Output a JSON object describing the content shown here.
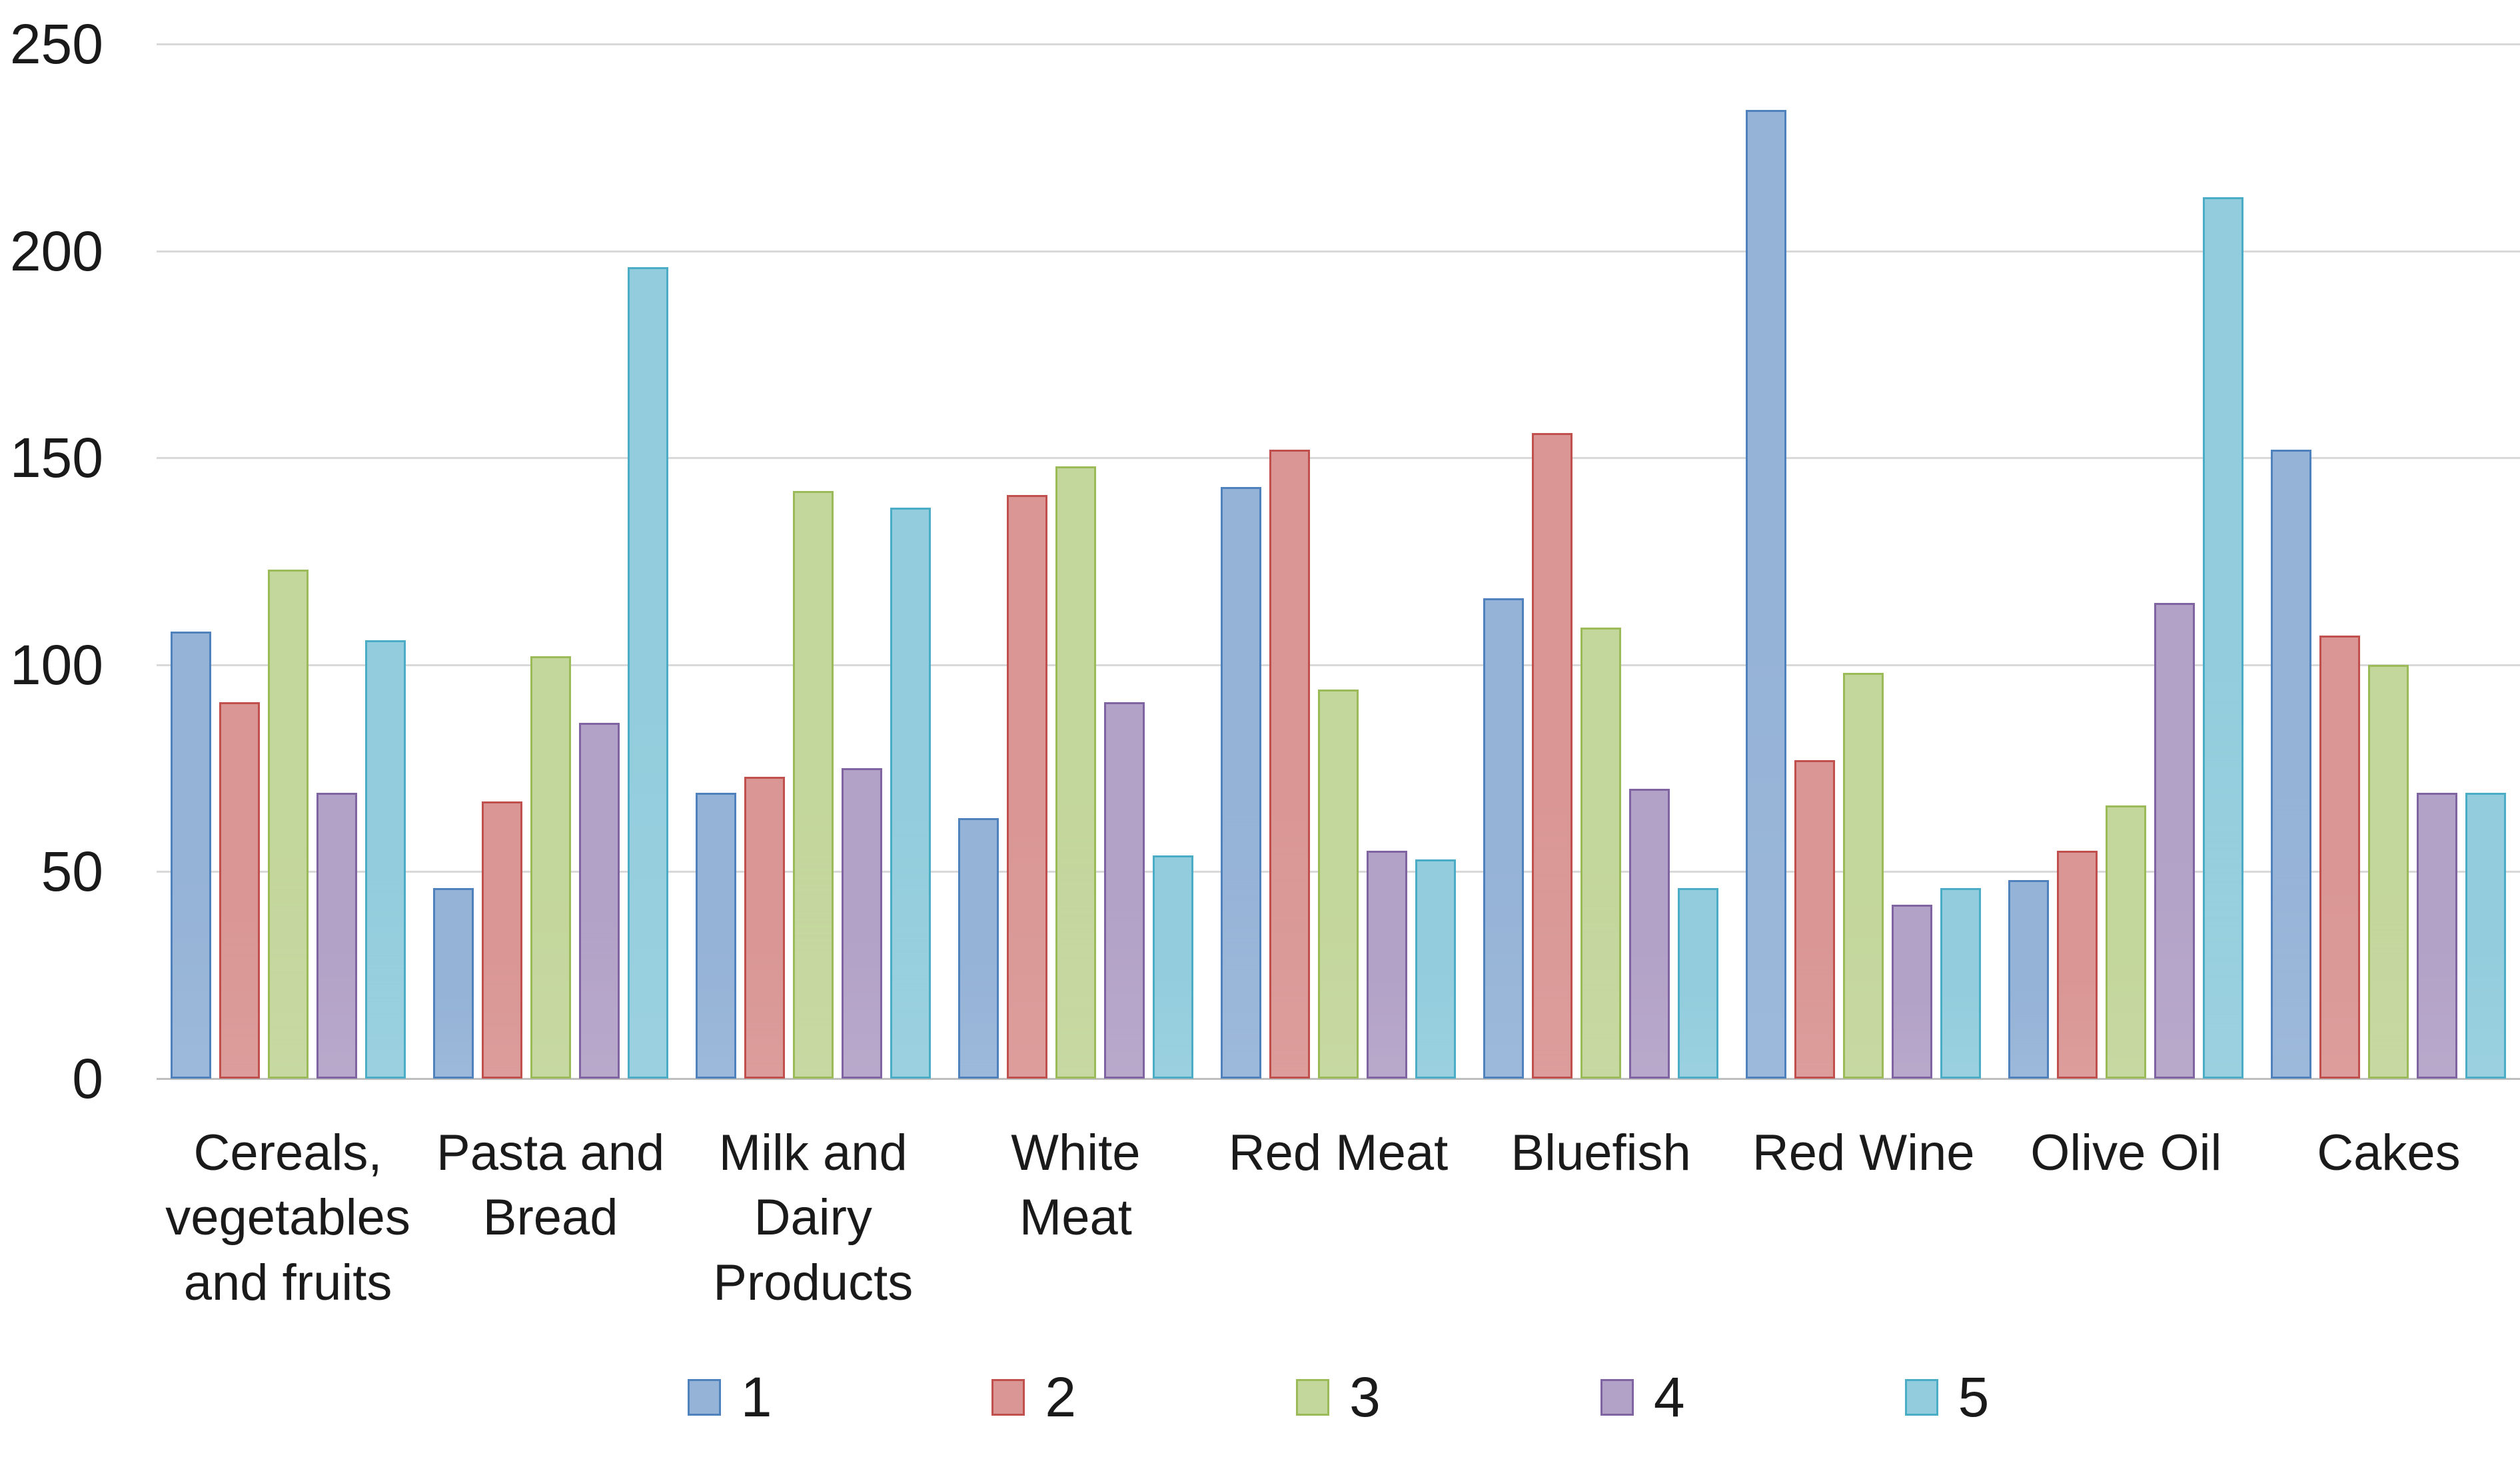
{
  "chart_data": {
    "type": "bar",
    "title": "",
    "xlabel": "",
    "ylabel": "",
    "background": "#FFFFFF",
    "text_color": "#1A1A1A",
    "categories": [
      "Cereals, vegetables and fruits",
      "Pasta and Bread",
      "Milk and Dairy Products",
      "White Meat",
      "Red Meat",
      "Bluefish",
      "Red Wine",
      "Olive Oil",
      "Cakes"
    ],
    "series": [
      {
        "name": "1",
        "fill": "#95B3D7",
        "border": "#4F81BD",
        "values": [
          108,
          46,
          69,
          63,
          143,
          116,
          234,
          48,
          152
        ]
      },
      {
        "name": "2",
        "fill": "#D99694",
        "border": "#C0504D",
        "values": [
          91,
          67,
          73,
          141,
          152,
          156,
          77,
          55,
          107
        ]
      },
      {
        "name": "3",
        "fill": "#C3D69B",
        "border": "#9BBB59",
        "values": [
          123,
          102,
          142,
          148,
          94,
          109,
          98,
          66,
          100
        ]
      },
      {
        "name": "4",
        "fill": "#B3A2C7",
        "border": "#8064A2",
        "values": [
          69,
          86,
          75,
          91,
          55,
          70,
          42,
          115,
          69
        ]
      },
      {
        "name": "5",
        "fill": "#93CDDD",
        "border": "#4BACC6",
        "values": [
          106,
          196,
          138,
          54,
          53,
          46,
          46,
          213,
          69
        ]
      }
    ],
    "y_axis": {
      "min": 0,
      "max": 250,
      "step": 50,
      "tick_labels": [
        "0",
        "50",
        "100",
        "150",
        "200",
        "250"
      ]
    },
    "grid": {
      "horizontal": true,
      "color": "#D9D9D9",
      "baseline_color": "#BFBFBF"
    },
    "legend": {
      "position": "bottom",
      "entries": [
        "1",
        "2",
        "3",
        "4",
        "5"
      ]
    }
  }
}
